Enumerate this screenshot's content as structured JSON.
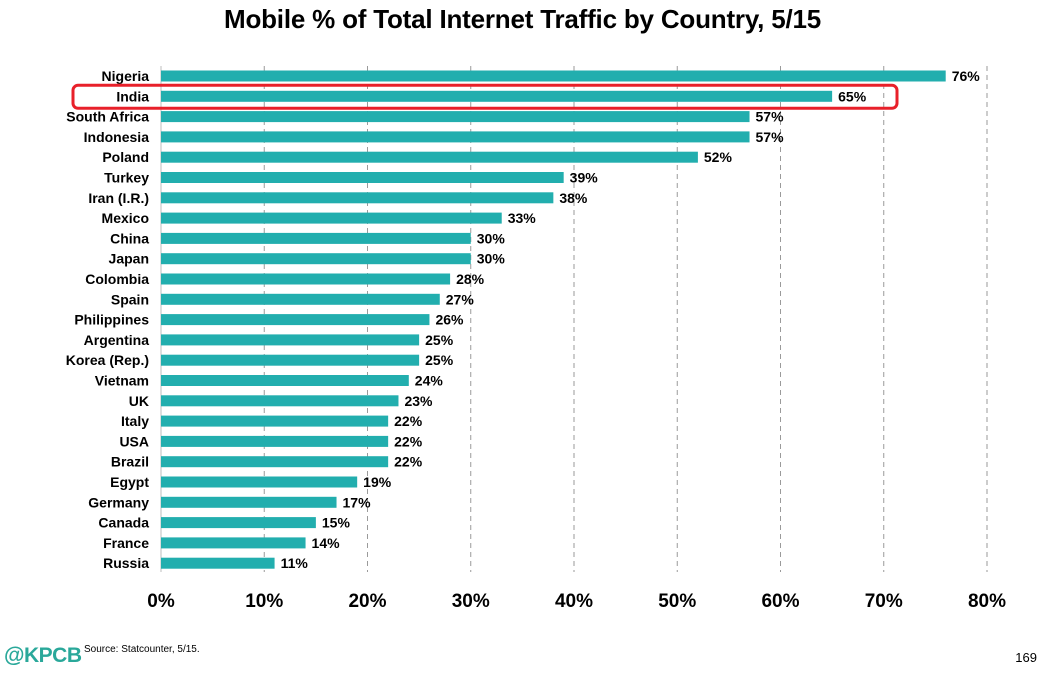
{
  "title": "Mobile % of Total Internet Traffic by Country, 5/15",
  "footer": {
    "logo": "@KPCB",
    "source": "Source: Statcounter, 5/15.",
    "page_number": "169"
  },
  "colors": {
    "bar": "#22aeae",
    "highlight": "#e8202a",
    "grid": "#9a9a9a",
    "brand": "#2aa89a"
  },
  "chart_data": {
    "type": "bar",
    "orientation": "horizontal",
    "title": "Mobile % of Total Internet Traffic by Country, 5/15",
    "categories": [
      "Nigeria",
      "India",
      "South Africa",
      "Indonesia",
      "Poland",
      "Turkey",
      "Iran (I.R.)",
      "Mexico",
      "China",
      "Japan",
      "Colombia",
      "Spain",
      "Philippines",
      "Argentina",
      "Korea (Rep.)",
      "Vietnam",
      "UK",
      "Italy",
      "USA",
      "Brazil",
      "Egypt",
      "Germany",
      "Canada",
      "France",
      "Russia"
    ],
    "values": [
      76,
      65,
      57,
      57,
      52,
      39,
      38,
      33,
      30,
      30,
      28,
      27,
      26,
      25,
      25,
      24,
      23,
      22,
      22,
      22,
      19,
      17,
      15,
      14,
      11
    ],
    "value_labels": [
      "76%",
      "65%",
      "57%",
      "57%",
      "52%",
      "39%",
      "38%",
      "33%",
      "30%",
      "30%",
      "28%",
      "27%",
      "26%",
      "25%",
      "25%",
      "24%",
      "23%",
      "22%",
      "22%",
      "22%",
      "19%",
      "17%",
      "15%",
      "14%",
      "11%"
    ],
    "xlim": [
      0,
      80
    ],
    "xticks": [
      0,
      10,
      20,
      30,
      40,
      50,
      60,
      70,
      80
    ],
    "xtick_labels": [
      "0%",
      "10%",
      "20%",
      "30%",
      "40%",
      "50%",
      "60%",
      "70%",
      "80%"
    ],
    "xlabel": "",
    "ylabel": "",
    "grid": "vertical dashed",
    "highlighted_category": "India"
  }
}
